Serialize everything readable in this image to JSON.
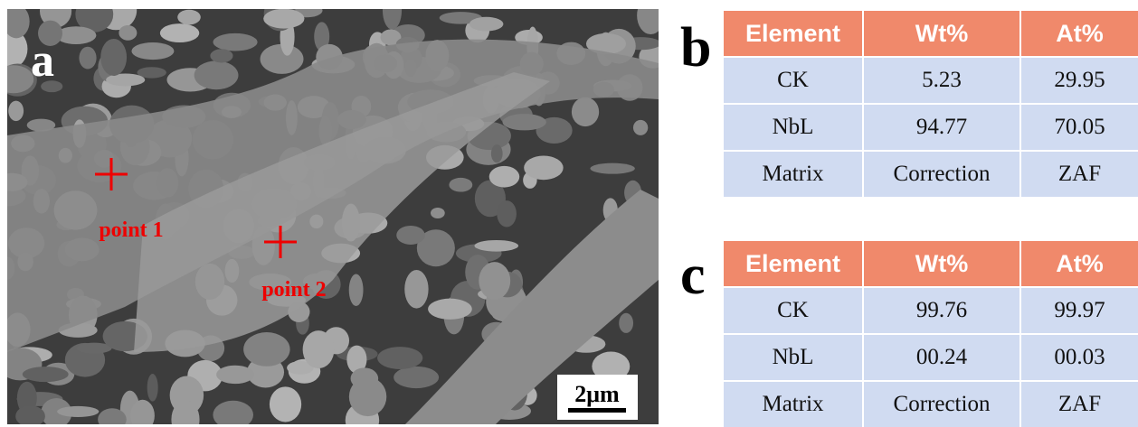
{
  "image": {
    "label": "a",
    "points": [
      "point 1",
      "point 2"
    ],
    "scale_bar": "2μm"
  },
  "tables": [
    {
      "label": "b",
      "header": [
        "Element",
        "Wt%",
        "At%"
      ],
      "rows": [
        [
          "CK",
          "5.23",
          "29.95"
        ],
        [
          "NbL",
          "94.77",
          "70.05"
        ],
        [
          "Matrix",
          "Correction",
          "ZAF"
        ]
      ]
    },
    {
      "label": "c",
      "header": [
        "Element",
        "Wt%",
        "At%"
      ],
      "rows": [
        [
          "CK",
          "99.76",
          "99.97"
        ],
        [
          "NbL",
          "00.24",
          "00.03"
        ],
        [
          "Matrix",
          "Correction",
          "ZAF"
        ]
      ]
    }
  ]
}
